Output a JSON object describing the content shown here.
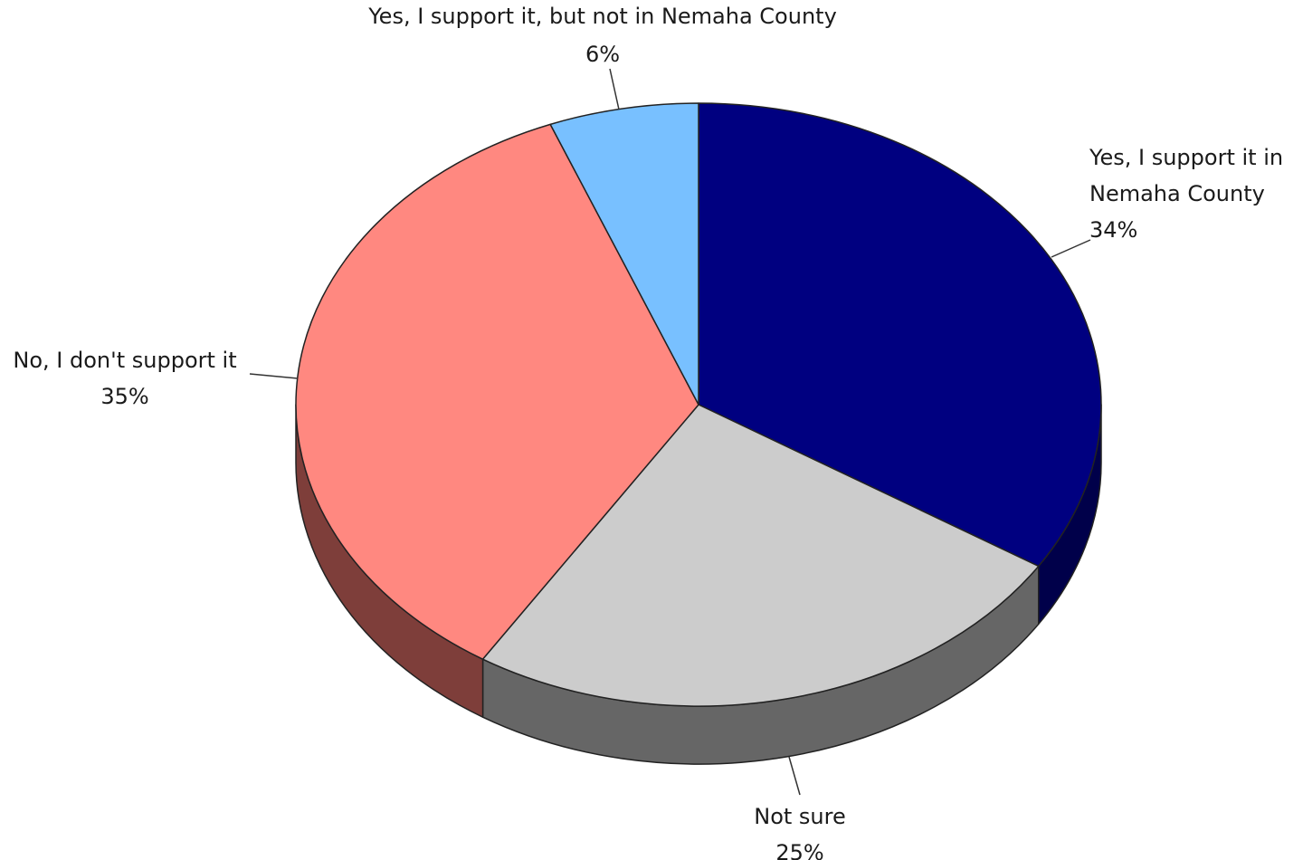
{
  "chart_data": {
    "type": "pie",
    "title": "",
    "slices": [
      {
        "label_lines": [
          "Yes, I support it in",
          "Nemaha County"
        ],
        "value": 34,
        "value_label": "34%",
        "color": "#000080",
        "side_color": "#00004a"
      },
      {
        "label_lines": [
          "Not sure"
        ],
        "value": 25,
        "value_label": "25%",
        "color": "#cccccc",
        "side_color": "#666666"
      },
      {
        "label_lines": [
          "No, I don't support it"
        ],
        "value": 35,
        "value_label": "35%",
        "color": "#ff8880",
        "side_color": "#7e3e3a"
      },
      {
        "label_lines": [
          "Yes, I support it, but not in Nemaha County"
        ],
        "value": 6,
        "value_label": "6%",
        "color": "#78c0ff",
        "side_color": "#3c6c99"
      }
    ],
    "start_angle_deg": 0,
    "direction": "clockwise",
    "style": "3d",
    "legend": "none"
  }
}
